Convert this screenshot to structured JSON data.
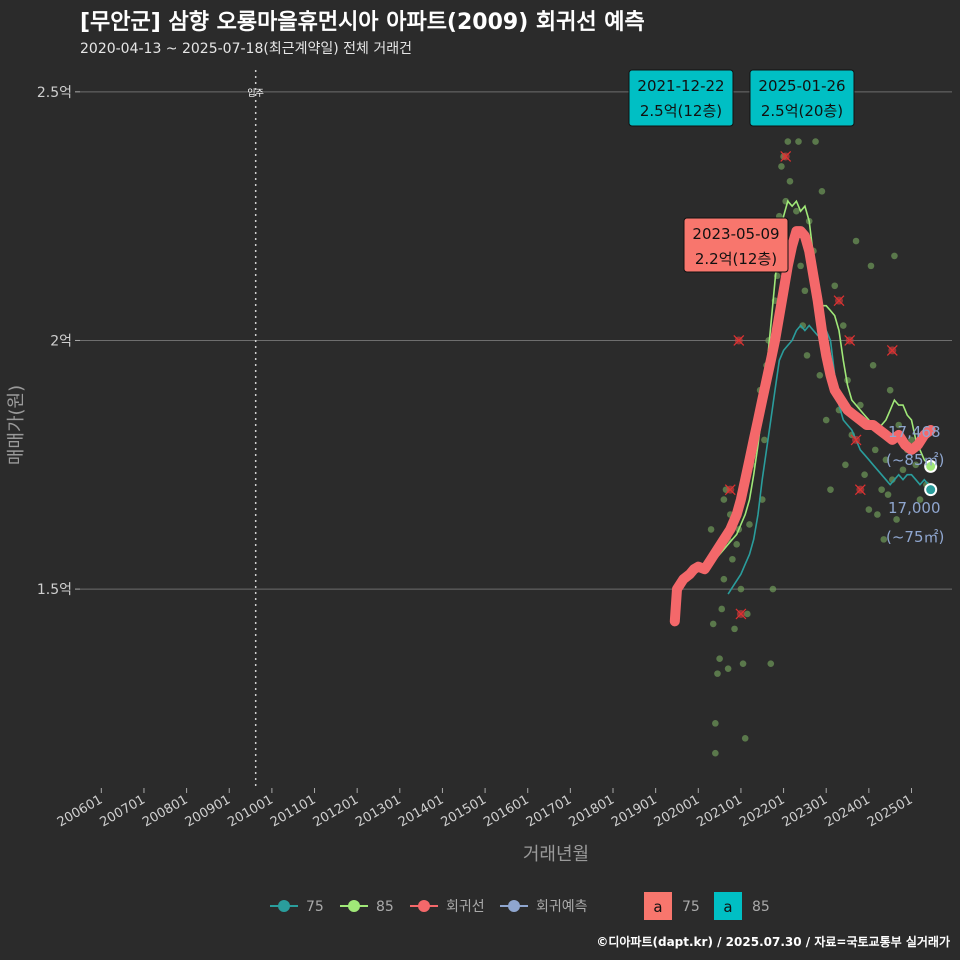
{
  "header": {
    "title": "[무안군] 삼향 오룡마을휴먼시아 아파트(2009) 회귀선 예측",
    "subtitle": "2020-04-13 ~ 2025-07-18(최근계약일) 전체 거래건"
  },
  "footer": {
    "credit": "©디아파트(dapt.kr) / 2025.07.30 / 자료=국토교통부 실거래가"
  },
  "colors": {
    "background": "#2b2b2b",
    "grid": "#6e6e6e",
    "area75": "#2a9d9c",
    "area85": "#a0e878",
    "regression": "#f4686a",
    "forecast": "#8fa6cf",
    "label75": "#f8766d",
    "label85": "#00bfc4",
    "points": "#6f9a5a"
  },
  "chart_data": {
    "type": "line",
    "title": "[무안군] 삼향 오룡마을휴먼시아 아파트(2009) 회귀선 예측",
    "xlabel": "거래년월",
    "ylabel": "매매가(원)",
    "xlim": [
      2005.5,
      2025.95
    ],
    "ylim": [
      11000,
      25600
    ],
    "y_ticks": [
      {
        "value": 15000,
        "label": "1.5억"
      },
      {
        "value": 20000,
        "label": "2억"
      },
      {
        "value": 25000,
        "label": "2.5억"
      }
    ],
    "x_ticks": [
      {
        "value": 2006,
        "label": "200601"
      },
      {
        "value": 2007,
        "label": "200701"
      },
      {
        "value": 2008,
        "label": "200801"
      },
      {
        "value": 2009,
        "label": "200901"
      },
      {
        "value": 2010,
        "label": "201001"
      },
      {
        "value": 2011,
        "label": "201101"
      },
      {
        "value": 2012,
        "label": "201201"
      },
      {
        "value": 2013,
        "label": "201301"
      },
      {
        "value": 2014,
        "label": "201401"
      },
      {
        "value": 2015,
        "label": "201501"
      },
      {
        "value": 2016,
        "label": "201601"
      },
      {
        "value": 2017,
        "label": "201701"
      },
      {
        "value": 2018,
        "label": "201801"
      },
      {
        "value": 2019,
        "label": "201901"
      },
      {
        "value": 2020,
        "label": "202001"
      },
      {
        "value": 2021,
        "label": "202101"
      },
      {
        "value": 2022,
        "label": "202201"
      },
      {
        "value": 2023,
        "label": "202301"
      },
      {
        "value": 2024,
        "label": "202401"
      },
      {
        "value": 2025,
        "label": "202501"
      }
    ],
    "move_in": {
      "x": 2009.62,
      "label": "입주"
    },
    "series": [
      {
        "name": "75",
        "color": "#2a9d9c",
        "points": [
          [
            2020.7,
            14900
          ],
          [
            2020.85,
            15100
          ],
          [
            2021.0,
            15300
          ],
          [
            2021.1,
            15500
          ],
          [
            2021.2,
            15700
          ],
          [
            2021.3,
            16000
          ],
          [
            2021.4,
            16500
          ],
          [
            2021.5,
            17200
          ],
          [
            2021.6,
            17800
          ],
          [
            2021.7,
            18400
          ],
          [
            2021.8,
            19000
          ],
          [
            2021.9,
            19600
          ],
          [
            2022.0,
            19800
          ],
          [
            2022.1,
            19900
          ],
          [
            2022.2,
            20000
          ],
          [
            2022.3,
            20200
          ],
          [
            2022.4,
            20300
          ],
          [
            2022.5,
            20200
          ],
          [
            2022.6,
            20300
          ],
          [
            2022.7,
            20200
          ],
          [
            2022.8,
            20100
          ],
          [
            2022.9,
            20100
          ],
          [
            2023.0,
            20200
          ],
          [
            2023.1,
            20000
          ],
          [
            2023.2,
            19300
          ],
          [
            2023.3,
            18700
          ],
          [
            2023.4,
            18400
          ],
          [
            2023.5,
            18300
          ],
          [
            2023.6,
            18200
          ],
          [
            2023.7,
            18000
          ],
          [
            2023.8,
            17800
          ],
          [
            2023.9,
            17700
          ],
          [
            2024.0,
            17600
          ],
          [
            2024.1,
            17500
          ],
          [
            2024.2,
            17400
          ],
          [
            2024.3,
            17300
          ],
          [
            2024.4,
            17200
          ],
          [
            2024.5,
            17100
          ],
          [
            2024.6,
            17200
          ],
          [
            2024.7,
            17300
          ],
          [
            2024.8,
            17200
          ],
          [
            2024.9,
            17300
          ],
          [
            2025.0,
            17300
          ],
          [
            2025.1,
            17200
          ],
          [
            2025.2,
            17100
          ],
          [
            2025.3,
            17200
          ],
          [
            2025.4,
            17100
          ],
          [
            2025.45,
            17000
          ]
        ]
      },
      {
        "name": "85",
        "color": "#a0e878",
        "points": [
          [
            2020.2,
            15400
          ],
          [
            2020.3,
            15500
          ],
          [
            2020.4,
            15600
          ],
          [
            2020.5,
            15700
          ],
          [
            2020.6,
            15800
          ],
          [
            2020.7,
            15900
          ],
          [
            2020.8,
            16000
          ],
          [
            2020.9,
            16100
          ],
          [
            2021.0,
            16300
          ],
          [
            2021.1,
            16500
          ],
          [
            2021.2,
            16800
          ],
          [
            2021.3,
            17300
          ],
          [
            2021.4,
            17900
          ],
          [
            2021.5,
            18600
          ],
          [
            2021.6,
            19400
          ],
          [
            2021.7,
            20300
          ],
          [
            2021.8,
            21200
          ],
          [
            2021.9,
            22000
          ],
          [
            2022.0,
            22500
          ],
          [
            2022.1,
            22800
          ],
          [
            2022.2,
            22700
          ],
          [
            2022.3,
            22800
          ],
          [
            2022.4,
            22600
          ],
          [
            2022.5,
            22700
          ],
          [
            2022.6,
            22400
          ],
          [
            2022.7,
            21700
          ],
          [
            2022.8,
            21000
          ],
          [
            2022.9,
            20700
          ],
          [
            2023.0,
            20700
          ],
          [
            2023.1,
            20600
          ],
          [
            2023.2,
            20500
          ],
          [
            2023.3,
            20200
          ],
          [
            2023.4,
            19600
          ],
          [
            2023.5,
            19100
          ],
          [
            2023.6,
            18800
          ],
          [
            2023.7,
            18700
          ],
          [
            2023.8,
            18600
          ],
          [
            2023.9,
            18500
          ],
          [
            2024.0,
            18400
          ],
          [
            2024.1,
            18300
          ],
          [
            2024.2,
            18200
          ],
          [
            2024.3,
            18300
          ],
          [
            2024.4,
            18400
          ],
          [
            2024.5,
            18600
          ],
          [
            2024.6,
            18800
          ],
          [
            2024.7,
            18700
          ],
          [
            2024.8,
            18700
          ],
          [
            2024.9,
            18500
          ],
          [
            2025.0,
            18400
          ],
          [
            2025.1,
            18000
          ],
          [
            2025.2,
            17800
          ],
          [
            2025.3,
            17600
          ],
          [
            2025.4,
            17500
          ],
          [
            2025.45,
            17468
          ]
        ]
      },
      {
        "name": "회귀선",
        "color": "#f4686a",
        "points": [
          [
            2019.45,
            14350
          ],
          [
            2019.5,
            15000
          ],
          [
            2019.65,
            15200
          ],
          [
            2019.8,
            15300
          ],
          [
            2019.9,
            15400
          ],
          [
            2020.0,
            15450
          ],
          [
            2020.15,
            15400
          ],
          [
            2020.3,
            15600
          ],
          [
            2020.45,
            15800
          ],
          [
            2020.6,
            16000
          ],
          [
            2020.75,
            16200
          ],
          [
            2020.9,
            16500
          ],
          [
            2021.0,
            16800
          ],
          [
            2021.1,
            17200
          ],
          [
            2021.2,
            17600
          ],
          [
            2021.3,
            18000
          ],
          [
            2021.4,
            18400
          ],
          [
            2021.5,
            18800
          ],
          [
            2021.6,
            19200
          ],
          [
            2021.7,
            19600
          ],
          [
            2021.8,
            20000
          ],
          [
            2021.9,
            20500
          ],
          [
            2022.0,
            21000
          ],
          [
            2022.1,
            21500
          ],
          [
            2022.2,
            21900
          ],
          [
            2022.3,
            22200
          ],
          [
            2022.4,
            22200
          ],
          [
            2022.5,
            22100
          ],
          [
            2022.6,
            21800
          ],
          [
            2022.7,
            21300
          ],
          [
            2022.8,
            20800
          ],
          [
            2022.9,
            20200
          ],
          [
            2023.0,
            19700
          ],
          [
            2023.1,
            19300
          ],
          [
            2023.2,
            19000
          ],
          [
            2023.35,
            18800
          ],
          [
            2023.5,
            18600
          ],
          [
            2023.65,
            18500
          ],
          [
            2023.8,
            18400
          ],
          [
            2023.95,
            18300
          ],
          [
            2024.1,
            18300
          ],
          [
            2024.25,
            18200
          ],
          [
            2024.4,
            18100
          ],
          [
            2024.55,
            18000
          ],
          [
            2024.7,
            18100
          ],
          [
            2024.85,
            17900
          ],
          [
            2025.0,
            17800
          ],
          [
            2025.15,
            17900
          ],
          [
            2025.3,
            18100
          ],
          [
            2025.45,
            18200
          ]
        ]
      }
    ],
    "scatter": [
      [
        2020.2,
        15500
      ],
      [
        2020.3,
        16200
      ],
      [
        2020.35,
        14300
      ],
      [
        2020.4,
        12300
      ],
      [
        2020.4,
        11700
      ],
      [
        2020.45,
        13300
      ],
      [
        2020.5,
        13600
      ],
      [
        2020.55,
        14600
      ],
      [
        2020.6,
        15200
      ],
      [
        2020.6,
        16800
      ],
      [
        2020.65,
        17000
      ],
      [
        2020.7,
        16000
      ],
      [
        2020.7,
        13400
      ],
      [
        2020.75,
        16500
      ],
      [
        2020.8,
        15600
      ],
      [
        2020.85,
        14200
      ],
      [
        2020.9,
        15900
      ],
      [
        2020.95,
        16200
      ],
      [
        2021.0,
        15000
      ],
      [
        2021.05,
        13500
      ],
      [
        2021.1,
        12000
      ],
      [
        2021.15,
        14500
      ],
      [
        2021.2,
        16300
      ],
      [
        2021.25,
        17500
      ],
      [
        2021.3,
        17800
      ],
      [
        2021.35,
        18200
      ],
      [
        2021.4,
        18500
      ],
      [
        2021.45,
        19000
      ],
      [
        2021.5,
        16800
      ],
      [
        2021.55,
        18000
      ],
      [
        2021.6,
        19500
      ],
      [
        2021.65,
        20000
      ],
      [
        2021.7,
        13500
      ],
      [
        2021.75,
        15000
      ],
      [
        2021.8,
        20800
      ],
      [
        2021.85,
        21300
      ],
      [
        2021.9,
        22500
      ],
      [
        2021.95,
        23500
      ],
      [
        2022.0,
        23700
      ],
      [
        2022.05,
        22800
      ],
      [
        2022.1,
        24000
      ],
      [
        2022.15,
        23200
      ],
      [
        2022.2,
        24500
      ],
      [
        2022.25,
        22000
      ],
      [
        2022.3,
        22600
      ],
      [
        2022.35,
        24000
      ],
      [
        2022.4,
        21500
      ],
      [
        2022.45,
        20300
      ],
      [
        2022.5,
        21000
      ],
      [
        2022.55,
        19700
      ],
      [
        2022.6,
        22400
      ],
      [
        2022.7,
        21800
      ],
      [
        2022.75,
        24000
      ],
      [
        2022.8,
        20600
      ],
      [
        2022.85,
        19300
      ],
      [
        2022.9,
        23000
      ],
      [
        2023.0,
        18400
      ],
      [
        2023.1,
        17000
      ],
      [
        2023.2,
        21100
      ],
      [
        2023.3,
        18600
      ],
      [
        2023.4,
        20300
      ],
      [
        2023.45,
        17500
      ],
      [
        2023.5,
        19200
      ],
      [
        2023.6,
        18100
      ],
      [
        2023.7,
        22000
      ],
      [
        2023.8,
        18700
      ],
      [
        2023.9,
        17300
      ],
      [
        2024.0,
        16600
      ],
      [
        2024.05,
        21500
      ],
      [
        2024.1,
        19500
      ],
      [
        2024.15,
        17800
      ],
      [
        2024.2,
        16500
      ],
      [
        2024.25,
        18200
      ],
      [
        2024.3,
        17000
      ],
      [
        2024.35,
        16000
      ],
      [
        2024.4,
        17600
      ],
      [
        2024.45,
        16900
      ],
      [
        2024.5,
        19000
      ],
      [
        2024.55,
        17200
      ],
      [
        2024.6,
        21700
      ],
      [
        2024.65,
        16400
      ],
      [
        2024.7,
        18300
      ],
      [
        2024.8,
        17400
      ],
      [
        2024.9,
        17800
      ],
      [
        2025.0,
        18000
      ],
      [
        2025.1,
        17500
      ],
      [
        2025.2,
        16800
      ],
      [
        2025.3,
        18100
      ],
      [
        2025.35,
        17100
      ]
    ],
    "outliers": [
      [
        2020.75,
        17000
      ],
      [
        2020.95,
        20000
      ],
      [
        2021.0,
        14500
      ],
      [
        2022.05,
        23700
      ],
      [
        2023.3,
        20800
      ],
      [
        2023.55,
        20000
      ],
      [
        2023.7,
        18000
      ],
      [
        2023.8,
        17000
      ],
      [
        2024.55,
        19800
      ]
    ],
    "annotations": [
      {
        "date": "2021-12-22",
        "price": "2.5억(12층)",
        "x": 2021.97,
        "y": 25000,
        "area": "85"
      },
      {
        "date": "2025-01-26",
        "price": "2.5억(20층)",
        "x": 2025.07,
        "y": 25000,
        "area": "85"
      },
      {
        "date": "2023-05-09",
        "price": "2.2억(12층)",
        "x": 2023.35,
        "y": 22000,
        "area": "75"
      }
    ],
    "end_labels": [
      {
        "value_text": "17,468",
        "area_text": "(~85㎡)",
        "x": 2025.45,
        "y": 17468,
        "color": "#a0e878"
      },
      {
        "value_text": "17,000",
        "area_text": "(~75㎡)",
        "x": 2025.45,
        "y": 17000,
        "color": "#2a9d9c"
      }
    ],
    "legend": [
      {
        "label": "75",
        "color": "#2a9d9c"
      },
      {
        "label": "85",
        "color": "#a0e878"
      },
      {
        "label": "회귀선",
        "color": "#f4686a"
      },
      {
        "label": "회귀예측",
        "color": "#8fa6cf"
      }
    ],
    "legend_boxes": [
      {
        "glyph": "a",
        "label": "75",
        "color": "#f8766d"
      },
      {
        "glyph": "a",
        "label": "85",
        "color": "#00bfc4"
      }
    ]
  }
}
